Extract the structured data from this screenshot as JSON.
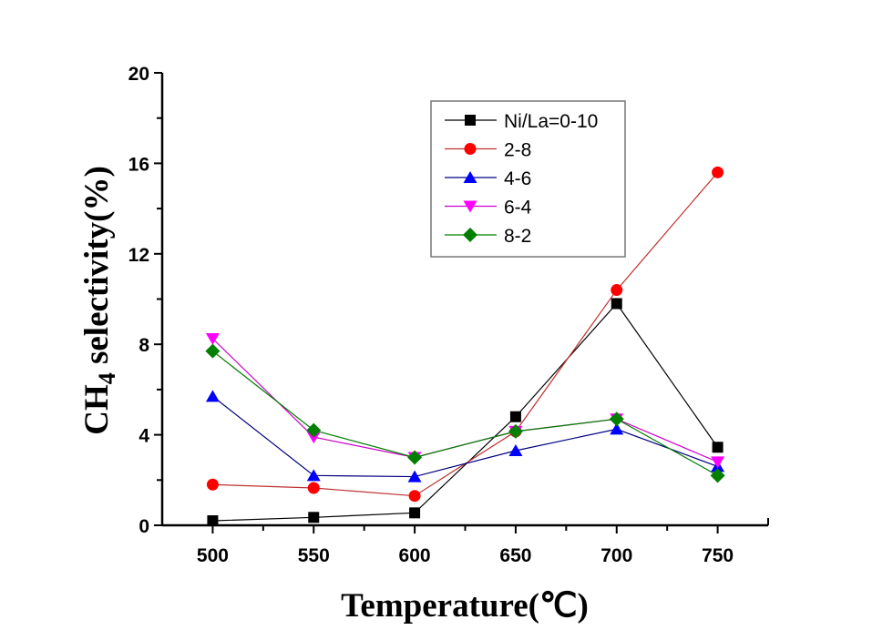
{
  "chart_data": {
    "type": "line",
    "title": "",
    "xlabel": "Temperature(℃)",
    "ylabel_main": "CH",
    "ylabel_sub": "4",
    "ylabel_rest": " selectivity(%)",
    "x": [
      500,
      550,
      600,
      650,
      700,
      750
    ],
    "xlim": [
      475,
      775
    ],
    "ylim": [
      0,
      20
    ],
    "xticks": [
      500,
      550,
      600,
      650,
      700,
      750
    ],
    "xticks_minor": [
      525,
      575,
      625,
      675,
      725
    ],
    "yticks": [
      0,
      4,
      8,
      12,
      16,
      20
    ],
    "yticks_minor": [
      2,
      6,
      10,
      14,
      18
    ],
    "grid": false,
    "legend_position": "top-center",
    "series": [
      {
        "name": "Ni/La=0-10",
        "color": "#000000",
        "marker": "square",
        "values": [
          0.2,
          0.35,
          0.55,
          4.8,
          9.8,
          3.45
        ]
      },
      {
        "name": "2-8",
        "color": "#ff0000",
        "line_color": "#c03030",
        "marker": "circle",
        "values": [
          1.8,
          1.65,
          1.3,
          4.15,
          10.4,
          15.6
        ]
      },
      {
        "name": "4-6",
        "color": "#0000ff",
        "line_color": "#000080",
        "marker": "triangle-up",
        "values": [
          5.7,
          2.2,
          2.15,
          3.3,
          4.25,
          2.6
        ]
      },
      {
        "name": "6-4",
        "color": "#ff00ff",
        "line_color": "#cc00cc",
        "marker": "triangle-down",
        "values": [
          8.25,
          3.9,
          3.0,
          4.15,
          4.7,
          2.8
        ]
      },
      {
        "name": "8-2",
        "color": "#007f00",
        "line_color": "#007f00",
        "marker": "diamond",
        "values": [
          7.7,
          4.2,
          3.0,
          4.15,
          4.7,
          2.2
        ]
      }
    ]
  }
}
